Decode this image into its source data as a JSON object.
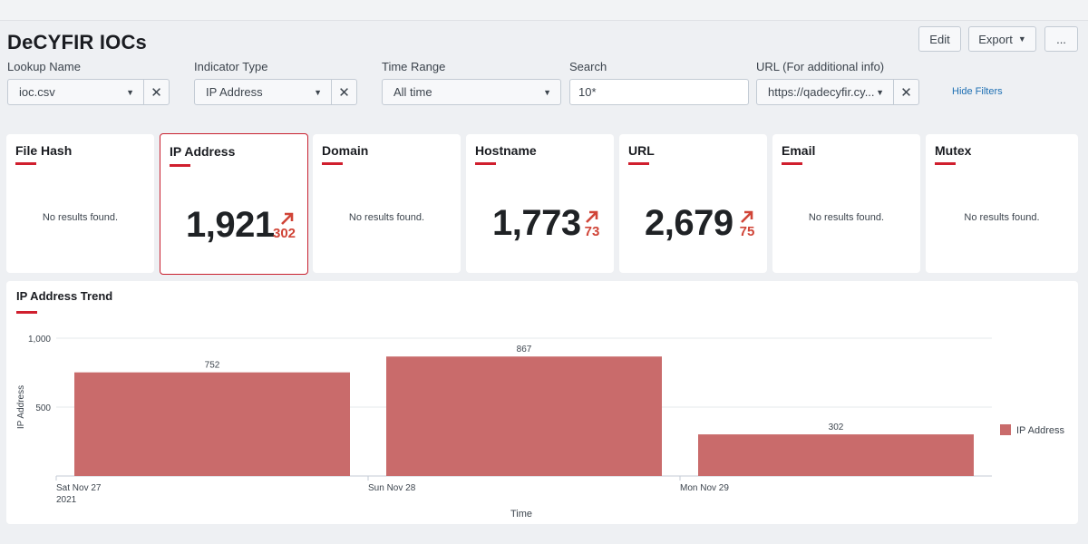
{
  "header": {
    "title": "DeCYFIR IOCs",
    "edit_label": "Edit",
    "export_label": "Export",
    "more_label": "..."
  },
  "filters": {
    "lookup_name": {
      "label": "Lookup Name",
      "value": "ioc.csv"
    },
    "indicator_type": {
      "label": "Indicator Type",
      "value": "IP Address"
    },
    "time_range": {
      "label": "Time Range",
      "value": "All time"
    },
    "search": {
      "label": "Search",
      "value": "10*"
    },
    "url": {
      "label": "URL (For additional info)",
      "value": "https://qadecyfir.cy..."
    },
    "hide_filters_label": "Hide Filters"
  },
  "cards": [
    {
      "title": "File Hash",
      "empty_text": "No results found."
    },
    {
      "title": "IP Address",
      "value": "1,921",
      "delta": "302"
    },
    {
      "title": "Domain",
      "empty_text": "No results found."
    },
    {
      "title": "Hostname",
      "value": "1,773",
      "delta": "73"
    },
    {
      "title": "URL",
      "value": "2,679",
      "delta": "75"
    },
    {
      "title": "Email",
      "empty_text": "No results found."
    },
    {
      "title": "Mutex",
      "empty_text": "No results found."
    }
  ],
  "trend": {
    "title": "IP Address Trend"
  },
  "colors": {
    "accent_red": "#d01f2e",
    "bar_color": "#c96b6b",
    "delta_color": "#d04437"
  },
  "chart_data": {
    "type": "bar",
    "categories": [
      "Sat Nov 27\n2021",
      "Sun Nov 28",
      "Mon Nov 29"
    ],
    "category_labels": [
      [
        "Sat Nov 27",
        "2021"
      ],
      [
        "Sun Nov 28"
      ],
      [
        "Mon Nov 29"
      ]
    ],
    "series": [
      {
        "name": "IP Address",
        "values": [
          752,
          867,
          302
        ]
      }
    ],
    "data_labels": [
      "752",
      "867",
      "302"
    ],
    "ylabel": "IP Address",
    "xlabel": "Time",
    "ylim": [
      0,
      1000
    ],
    "yticks": [
      500,
      1000
    ],
    "ytick_labels": [
      "500",
      "1,000"
    ],
    "legend": "right",
    "grid": true
  }
}
